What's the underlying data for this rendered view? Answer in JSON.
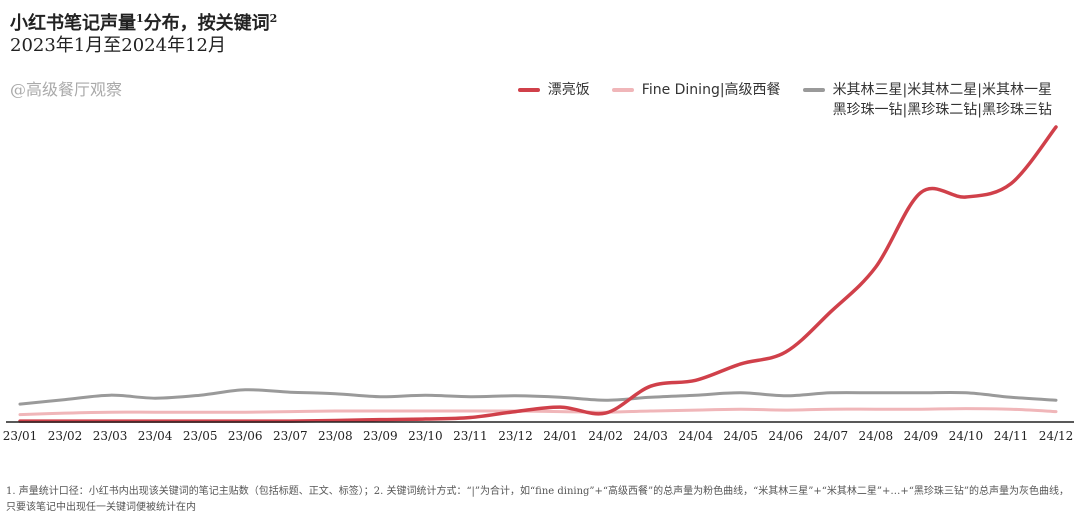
{
  "title": "小红书笔记声量",
  "title_sup1": "1",
  "title_tail": "分布，按关键词",
  "title_sup2": "2",
  "subtitle": "2023年1月至2024年12月",
  "watermark": "@高级餐厅观察",
  "footnote": "1. 声量统计口径：小红书内出现该关键词的笔记主贴数（包括标题、正文、标签）；2. 关键词统计方式：“|”为合计，如“fine dining”+“高级西餐”的总声量为粉色曲线，“米其林三星”+“米其林二星”+…+“黑珍珠三钻”的总声量为灰色曲线，只要该笔记中出现任一关键词便被统计在内",
  "colors": {
    "series1": "#d0404a",
    "series2": "#f0b6b9",
    "series3": "#9a9a9a",
    "axis": "#222222"
  },
  "chart_data": {
    "type": "line",
    "legend_position": "top-right",
    "grid": false,
    "x": [
      "23/01",
      "23/02",
      "23/03",
      "23/04",
      "23/05",
      "23/06",
      "23/07",
      "23/08",
      "23/09",
      "23/10",
      "23/11",
      "23/12",
      "24/01",
      "24/02",
      "24/03",
      "24/04",
      "24/05",
      "24/06",
      "24/07",
      "24/08",
      "24/09",
      "24/10",
      "24/11",
      "24/12"
    ],
    "ylim": [
      0,
      100
    ],
    "series": [
      {
        "name": "漂亮饭",
        "color": "#d0404a",
        "values": [
          0.3,
          0.3,
          0.3,
          0.3,
          0.3,
          0.3,
          0.3,
          0.5,
          0.8,
          1.0,
          1.5,
          3.5,
          5.0,
          3.0,
          12.0,
          14.0,
          19.5,
          23.5,
          37.0,
          52.0,
          77.0,
          75.5,
          80.0,
          99.0
        ]
      },
      {
        "name": "Fine Dining|高级西餐",
        "color": "#f0b6b9",
        "values": [
          2.5,
          3.0,
          3.3,
          3.3,
          3.3,
          3.3,
          3.5,
          3.7,
          3.7,
          3.7,
          3.7,
          3.7,
          3.5,
          3.3,
          3.7,
          4.0,
          4.3,
          4.0,
          4.3,
          4.3,
          4.3,
          4.5,
          4.3,
          3.5
        ]
      },
      {
        "name": "米其林三星|米其林二星|米其林一星\n黑珍珠一钻|黑珍珠二钻|黑珍珠三钻",
        "color": "#9a9a9a",
        "values": [
          6.0,
          7.5,
          9.0,
          8.0,
          9.0,
          10.8,
          10.0,
          9.5,
          8.5,
          9.0,
          8.5,
          8.8,
          8.3,
          7.3,
          8.3,
          9.0,
          9.8,
          8.8,
          9.8,
          9.8,
          9.8,
          9.8,
          8.3,
          7.3
        ]
      }
    ]
  }
}
